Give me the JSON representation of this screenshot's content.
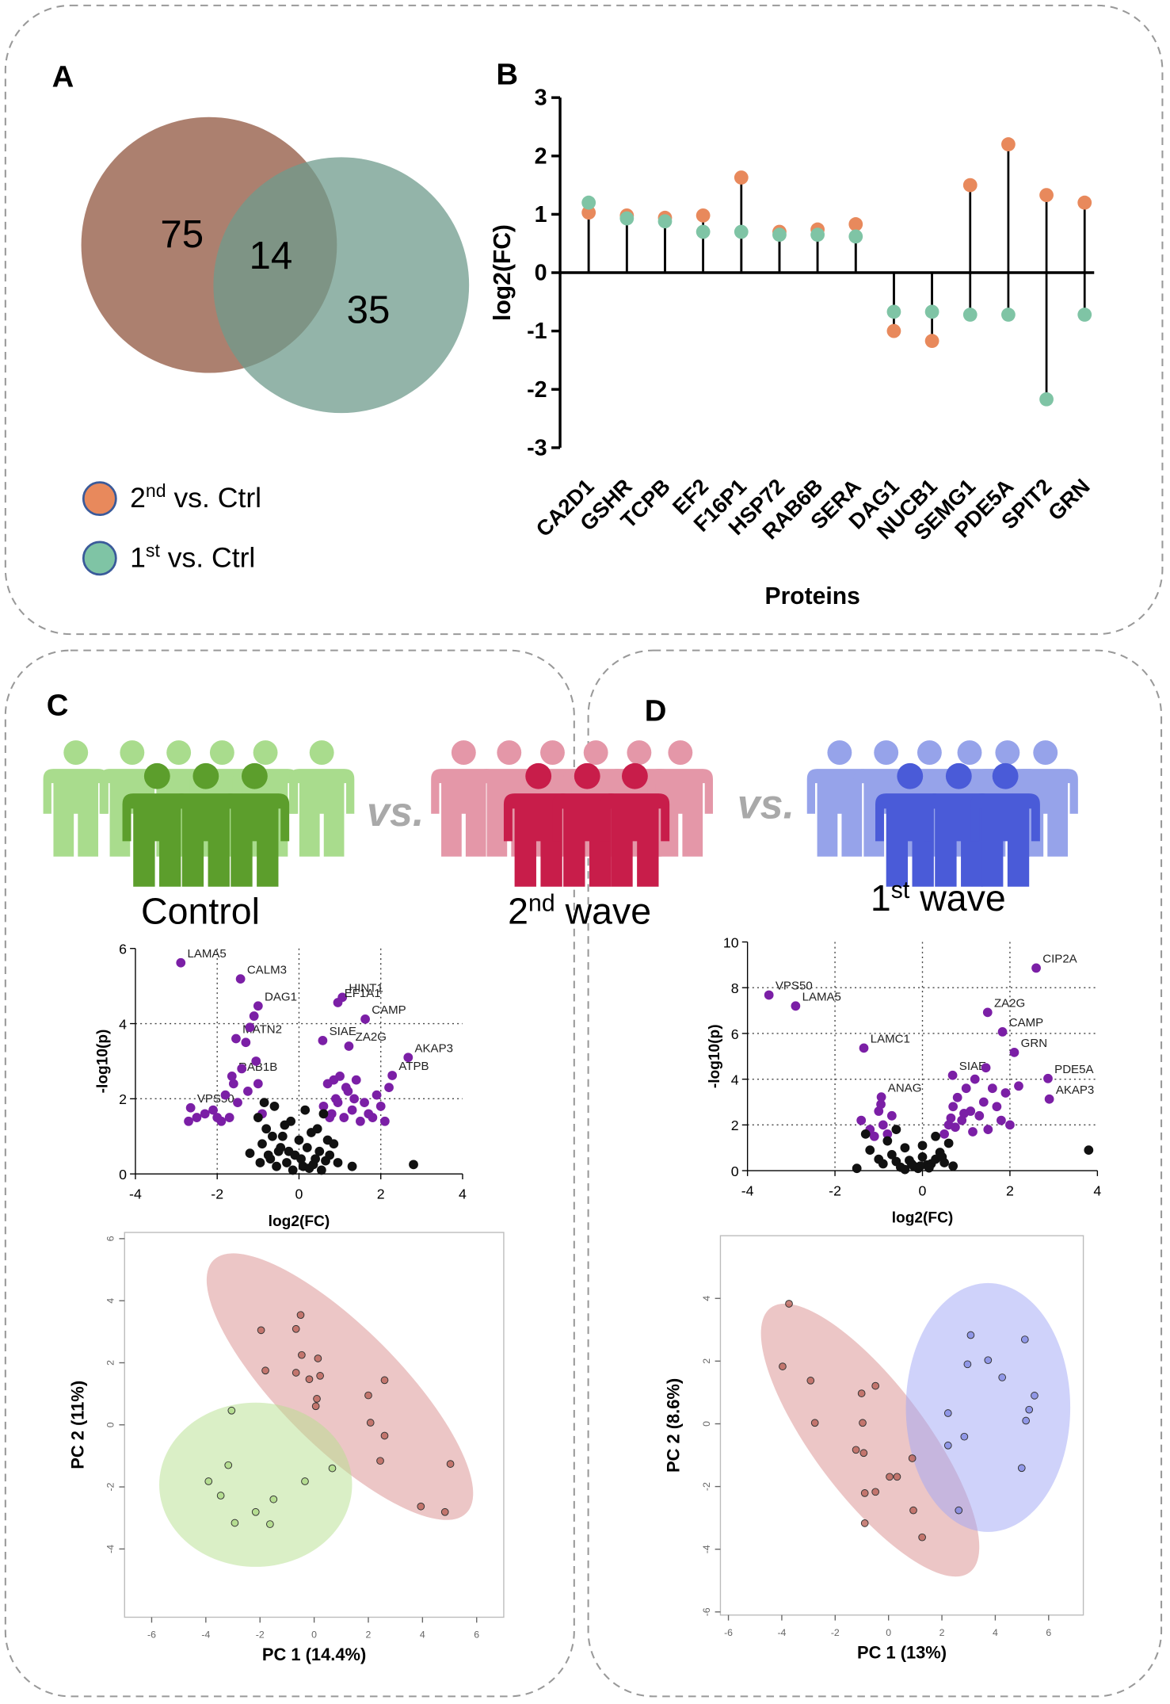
{
  "figure": {
    "panels": [
      "A",
      "B",
      "C",
      "D"
    ],
    "groups": [
      "Control",
      "2nd wave",
      "1st wave"
    ],
    "versus": "vs."
  },
  "chart_data": [
    {
      "type": "venn",
      "values": [
        75,
        14,
        35
      ],
      "colors": [
        "#a3725f",
        "#6f9b8c"
      ]
    },
    {
      "type": "lollipop",
      "xlabel": "Proteins",
      "ylabel": "log2(FC)",
      "categories": [
        "CA2D1",
        "GSHR",
        "TCPB",
        "EF2",
        "F16P1",
        "HSP72",
        "RAB6B",
        "SERA",
        "DAG1",
        "NUCB1",
        "SEMG1",
        "PDE5A",
        "SPIT2",
        "GRN"
      ],
      "series": [
        {
          "name": "2nd vs. Ctrl",
          "color": "#e8895c",
          "values": [
            1.03,
            0.98,
            0.94,
            0.98,
            1.63,
            0.7,
            0.74,
            0.83,
            -1.0,
            -1.17,
            1.5,
            2.2,
            1.33,
            1.2
          ]
        },
        {
          "name": "1st vs. Ctrl",
          "color": "#7fc4a5",
          "values": [
            1.2,
            0.93,
            0.88,
            0.7,
            0.7,
            0.65,
            0.65,
            0.62,
            -0.67,
            -0.67,
            -0.72,
            -0.72,
            -2.17,
            -0.72
          ]
        }
      ],
      "ylim": [
        -3,
        3
      ],
      "yticks": [
        -3,
        -2,
        -1,
        0,
        1,
        2,
        3
      ]
    },
    {
      "type": "scatter",
      "xlabel": "log2(FC)",
      "ylabel": "-log10(p)",
      "xlim": [
        -4,
        4
      ],
      "ylim": [
        0,
        6
      ],
      "xticks": [
        -4,
        -2,
        0,
        2,
        4
      ],
      "yticks": [
        0,
        2,
        4,
        6
      ],
      "grid": true,
      "series": [
        {
          "color": "#7b1fa6",
          "labels": [
            "LAMA5",
            "CALM3",
            "DAG1",
            "MATN2",
            "RAB1B",
            "VPS50",
            "HINT1",
            "EF1A1",
            "CAMP",
            "SIAE",
            "ZA2G",
            "AKAP3",
            "ATPB"
          ],
          "x": [
            -2.89,
            -1.43,
            -1.0,
            -1.54,
            -1.64,
            -2.65,
            1.06,
            0.95,
            1.62,
            0.58,
            1.22,
            2.67,
            2.28
          ],
          "values": [
            5.62,
            5.19,
            4.47,
            3.6,
            2.6,
            1.76,
            4.7,
            4.56,
            4.12,
            3.55,
            3.4,
            3.1,
            2.62
          ]
        },
        {
          "color": "#7b1fa6",
          "x": [
            -2.7,
            -2.5,
            -2.3,
            -2.1,
            -1.9,
            -1.7,
            -1.5,
            -1.3,
            -1.2,
            -1.1,
            -1.0,
            -1.4,
            -1.6,
            -0.9,
            -1.05,
            -1.25,
            -2.0,
            -1.8,
            0.6,
            0.7,
            0.8,
            0.9,
            1.0,
            1.1,
            1.2,
            1.3,
            1.4,
            1.5,
            1.6,
            1.7,
            1.8,
            1.9,
            2.0,
            2.1,
            2.2,
            0.75,
            0.95,
            1.15,
            0.85,
            1.35
          ],
          "values": [
            1.4,
            1.5,
            1.6,
            1.7,
            1.4,
            1.5,
            1.9,
            3.5,
            3.9,
            4.2,
            2.4,
            2.8,
            2.4,
            1.6,
            3.0,
            2.2,
            1.5,
            2.1,
            1.8,
            2.4,
            1.6,
            2.0,
            2.6,
            1.5,
            2.2,
            1.7,
            2.5,
            1.4,
            1.9,
            1.6,
            1.5,
            2.1,
            1.8,
            1.4,
            2.3,
            1.5,
            1.9,
            2.3,
            2.5,
            2.0
          ]
        },
        {
          "color": "#111111",
          "x": [
            -1.0,
            -0.9,
            -0.8,
            -0.7,
            -0.6,
            -0.5,
            -0.4,
            -0.3,
            -0.2,
            -0.1,
            0,
            0.1,
            0.2,
            0.3,
            0.4,
            0.5,
            0.6,
            0.7,
            -0.95,
            -0.75,
            -0.55,
            -0.35,
            -0.15,
            0.05,
            0.25,
            0.45,
            0.65,
            0.85,
            -0.65,
            -0.25,
            0.15,
            0.35,
            0.55,
            -0.45,
            0.75,
            1.3,
            2.8,
            -0.85,
            0.95,
            -1.2
          ],
          "values": [
            1.5,
            0.8,
            1.2,
            0.4,
            1.8,
            0.6,
            1.0,
            0.3,
            1.4,
            0.5,
            0.9,
            0.2,
            0.7,
            1.1,
            0.4,
            0.6,
            1.6,
            0.9,
            0.3,
            0.5,
            0.2,
            1.3,
            0.1,
            0.4,
            0.15,
            1.2,
            0.35,
            0.8,
            1.0,
            0.6,
            1.7,
            0.25,
            0.1,
            0.7,
            0.5,
            0.2,
            0.25,
            1.9,
            0.3,
            0.55
          ]
        }
      ]
    },
    {
      "type": "scatter",
      "xlabel": "log2(FC)",
      "ylabel": "-log10(p)",
      "xlim": [
        -4,
        4
      ],
      "ylim": [
        0,
        10
      ],
      "xticks": [
        -4,
        -2,
        0,
        2,
        4
      ],
      "yticks": [
        0,
        2,
        4,
        6,
        8,
        10
      ],
      "grid": true,
      "series": [
        {
          "color": "#7b1fa6",
          "labels": [
            "CIP2A",
            "VPS50",
            "LAMA5",
            "LAMC1",
            "ZA2G",
            "CAMP",
            "GRN",
            "SIAE",
            "PDE5A",
            "AKAP3",
            "ANAG"
          ],
          "x": [
            2.6,
            -3.51,
            -2.9,
            -1.34,
            1.49,
            1.83,
            2.1,
            0.69,
            2.87,
            2.9,
            -0.94
          ],
          "values": [
            8.86,
            7.68,
            7.2,
            5.36,
            6.92,
            6.07,
            5.17,
            4.17,
            4.03,
            3.13,
            3.22
          ]
        },
        {
          "color": "#7b1fa6",
          "x": [
            -1.4,
            -1.2,
            -1.0,
            -0.9,
            -0.8,
            -0.7,
            -1.1,
            0.5,
            0.6,
            0.7,
            0.8,
            0.9,
            1.0,
            1.1,
            1.2,
            1.3,
            1.4,
            1.5,
            1.6,
            1.7,
            1.8,
            1.9,
            2.0,
            2.2,
            0.75,
            0.95,
            1.15,
            0.65,
            1.45,
            -0.95
          ],
          "values": [
            2.2,
            1.8,
            2.6,
            2.0,
            1.6,
            2.4,
            1.5,
            1.6,
            2.0,
            2.8,
            3.2,
            2.2,
            3.6,
            2.6,
            4.0,
            2.4,
            3.0,
            1.8,
            3.6,
            2.8,
            2.2,
            3.4,
            2.0,
            3.7,
            1.9,
            2.5,
            1.7,
            2.3,
            4.5,
            2.9
          ]
        },
        {
          "color": "#111111",
          "x": [
            -1.5,
            -1.2,
            -1.0,
            -0.8,
            -0.6,
            -0.4,
            -0.2,
            0,
            0.2,
            0.4,
            0.6,
            -0.9,
            -0.7,
            -0.5,
            -0.3,
            -0.1,
            0.1,
            0.3,
            0.5,
            -1.3,
            -0.6,
            0.0,
            0.3,
            0.7,
            3.8,
            -0.4,
            0.15,
            -0.25,
            0.45,
            -0.05
          ],
          "values": [
            0.1,
            0.9,
            0.5,
            1.3,
            0.4,
            1.0,
            0.2,
            0.6,
            0.3,
            0.8,
            1.2,
            0.3,
            0.7,
            0.15,
            0.45,
            0.1,
            0.25,
            0.5,
            0.35,
            1.6,
            1.8,
            1.1,
            1.5,
            0.2,
            0.9,
            0.05,
            0.12,
            0.3,
            0.6,
            0.2
          ]
        }
      ]
    },
    {
      "type": "scatter",
      "xlabel": "PC 1 (14.4%)",
      "ylabel": "PC 2 (11%)",
      "xlim": [
        -7,
        7
      ],
      "ylim": [
        -6.2,
        6.2
      ],
      "xticks": [
        -6,
        -4,
        -2,
        0,
        2,
        4,
        6
      ],
      "yticks": [
        -4,
        -2,
        0,
        2,
        4,
        6
      ],
      "frame": true,
      "series": [
        {
          "color": "#b55a4f",
          "ellipse": {
            "cx": 0.95,
            "cy": 1.23,
            "rx": 6.6,
            "ry": 2.2,
            "angle": 45,
            "color": "#d98e8e"
          },
          "x": [
            -1.96,
            -0.5,
            -0.67,
            -1.8,
            -0.46,
            0.14,
            -0.67,
            -0.18,
            0.22,
            0.1,
            0.06,
            2.0,
            2.6,
            2.08,
            2.6,
            2.44,
            5.03,
            3.94,
            4.83
          ],
          "values": [
            3.05,
            3.54,
            3.09,
            1.75,
            2.25,
            2.14,
            1.68,
            1.47,
            1.58,
            0.84,
            0.6,
            0.95,
            1.44,
            0.07,
            -0.35,
            -1.16,
            -1.26,
            -2.63,
            -2.81
          ]
        },
        {
          "color": "#a8d77f",
          "ellipse": {
            "cx": -2.16,
            "cy": -1.93,
            "rx": 3.56,
            "ry": 3.03,
            "angle": 0,
            "color": "#b5e08e"
          },
          "x": [
            -3.05,
            -3.17,
            -3.9,
            -3.45,
            -2.93,
            -2.16,
            -1.63,
            -1.5,
            -0.34,
            0.67
          ],
          "values": [
            0.46,
            -1.3,
            -1.82,
            -2.28,
            -3.16,
            -2.81,
            -3.2,
            -2.4,
            -1.82,
            -1.4
          ]
        }
      ]
    },
    {
      "type": "scatter",
      "xlabel": "PC 1 (13%)",
      "ylabel": "PC 2 (8.6%)",
      "xlim": [
        -6.3,
        7.3
      ],
      "ylim": [
        -6.1,
        6
      ],
      "xticks": [
        -6,
        -4,
        -2,
        0,
        2,
        4,
        6
      ],
      "yticks": [
        -6,
        -4,
        -2,
        0,
        2,
        4
      ],
      "frame": true,
      "series": [
        {
          "color": "#b55a4f",
          "ellipse": {
            "cx": -0.69,
            "cy": -0.52,
            "rx": 6.2,
            "ry": 2.1,
            "angle": 53,
            "color": "#d98e8e"
          },
          "x": [
            -3.73,
            -3.97,
            -2.92,
            -2.76,
            -0.49,
            -1.01,
            -0.97,
            -1.22,
            -0.93,
            0.89,
            0.32,
            0.04,
            -0.49,
            -0.89,
            -0.89,
            0.93,
            1.26
          ],
          "values": [
            3.83,
            1.83,
            1.38,
            0.03,
            1.21,
            0.97,
            0.03,
            -0.83,
            -0.93,
            -1.1,
            -1.69,
            -1.69,
            -2.17,
            -2.21,
            -3.17,
            -2.76,
            -3.62
          ]
        },
        {
          "color": "#7b83e0",
          "ellipse": {
            "cx": 3.73,
            "cy": 0.52,
            "rx": 3.08,
            "ry": 4.66,
            "angle": 0,
            "color": "#9fa5f5"
          },
          "x": [
            3.08,
            5.11,
            3.73,
            2.96,
            4.26,
            5.47,
            5.27,
            5.15,
            2.23,
            2.84,
            2.23,
            4.99,
            2.63
          ],
          "values": [
            2.83,
            2.69,
            2.03,
            1.9,
            1.48,
            0.9,
            0.45,
            0.1,
            0.34,
            -0.41,
            -0.69,
            -1.41,
            -2.76
          ]
        }
      ]
    }
  ]
}
